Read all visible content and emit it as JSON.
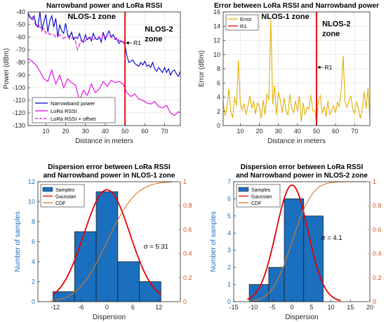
{
  "chart_data": [
    {
      "type": "line",
      "title": "Narrowband power and LoRa RSSI",
      "xlabel": "Distance in meters",
      "ylabel": "Power (dBm)",
      "xlim": [
        1,
        78
      ],
      "ylim": [
        -130,
        -40
      ],
      "xticks": [
        10,
        20,
        30,
        40,
        50,
        60,
        70
      ],
      "yticks": [
        -130,
        -120,
        -110,
        -100,
        -90,
        -80,
        -70,
        -60,
        -50,
        -40
      ],
      "grid": true,
      "legend_position": "bottom-left",
      "zone_divider_x": 50,
      "zone_labels": [
        {
          "lines": [
            "NLOS-1 zone"
          ],
          "x": 21,
          "y": -45.5
        },
        {
          "lines": [
            "NLOS-2",
            "zone"
          ],
          "x": 60,
          "y": -55.5
        }
      ],
      "marker_label": {
        "text": "R1",
        "arrow_from": [
          53.5,
          -64.5
        ],
        "arrow_to": [
          50.5,
          -64.5
        ]
      },
      "series": [
        {
          "name": "Narrowband power",
          "color": "#0000cc",
          "dash": "",
          "x": [
            1,
            2,
            3,
            4,
            5,
            6,
            7,
            8,
            9,
            10,
            11,
            12,
            13,
            14,
            15,
            16,
            17,
            18,
            19,
            20,
            21,
            22,
            23,
            24,
            25,
            26,
            27,
            28,
            29,
            30,
            31,
            32,
            33,
            34,
            35,
            36,
            37,
            38,
            39,
            40,
            41,
            42,
            43,
            44,
            45,
            46,
            47,
            48,
            49,
            50,
            51,
            52,
            53,
            54,
            55,
            56,
            57,
            58,
            59,
            60,
            61,
            62,
            63,
            64,
            65,
            66,
            67,
            68,
            69,
            70,
            71,
            72,
            73,
            74,
            75,
            76,
            77,
            78
          ],
          "y": [
            -41,
            -44,
            -46,
            -43,
            -50,
            -52,
            -40,
            -54,
            -48,
            -42,
            -56,
            -47,
            -43,
            -52,
            -45,
            -60,
            -50,
            -55,
            -57,
            -49,
            -58,
            -60,
            -56,
            -62,
            -60,
            -61,
            -57,
            -63,
            -64,
            -58,
            -62,
            -60,
            -63,
            -57,
            -61,
            -62,
            -60,
            -64,
            -56,
            -62,
            -58,
            -55,
            -60,
            -58,
            -61,
            -62,
            -65,
            -63,
            -64,
            -66,
            -75,
            -80,
            -79,
            -78,
            -81,
            -82,
            -83,
            -80,
            -82,
            -79,
            -83,
            -82,
            -84,
            -80,
            -85,
            -87,
            -84,
            -86,
            -88,
            -84,
            -88,
            -85,
            -90,
            -87,
            -86,
            -89,
            -91,
            -87
          ]
        },
        {
          "name": "LoRa RSSI",
          "color": "#e600e6",
          "dash": "",
          "x": [
            1,
            3,
            5,
            7,
            9,
            11,
            13,
            15,
            17,
            19,
            21,
            23,
            25,
            27,
            29,
            31,
            33,
            35,
            37,
            39,
            41,
            43,
            45,
            47,
            49,
            51,
            53,
            55,
            57,
            59,
            61,
            63,
            65,
            67,
            69,
            71,
            73,
            75,
            77,
            78
          ],
          "y": [
            -77,
            -79,
            -82,
            -87,
            -93,
            -95,
            -86,
            -97,
            -90,
            -100,
            -93,
            -96,
            -98,
            -110,
            -102,
            -106,
            -97,
            -104,
            -101,
            -95,
            -99,
            -94,
            -96,
            -95,
            -97,
            -104,
            -107,
            -105,
            -109,
            -110,
            -112,
            -113,
            -111,
            -115,
            -116,
            -114,
            -120,
            -122,
            -119,
            -120
          ]
        },
        {
          "name": "LoRa RSSI + offset",
          "color": "#e600e6",
          "dash": "6,3",
          "x": [
            1,
            2,
            3,
            4,
            5,
            6,
            7,
            8,
            9,
            10,
            11,
            12,
            13,
            14,
            15,
            16,
            17,
            18,
            19,
            20,
            21,
            22,
            23,
            24,
            25,
            26,
            27,
            28,
            29,
            30,
            31,
            32,
            33,
            34,
            35,
            36,
            37,
            38,
            39,
            40,
            41,
            42,
            43,
            44,
            45,
            46,
            47,
            48,
            49,
            50
          ],
          "y": [
            -42,
            -45,
            -44,
            -47,
            -51,
            -50,
            -52,
            -55,
            -53,
            -57,
            -56,
            -58,
            -57,
            -58,
            -60,
            -59,
            -58,
            -60,
            -61,
            -60,
            -59,
            -62,
            -61,
            -60,
            -63,
            -70,
            -66,
            -62,
            -64,
            -63,
            -60,
            -61,
            -60,
            -62,
            -61,
            -59,
            -60,
            -62,
            -58,
            -60,
            -59,
            -58,
            -60,
            -61,
            -62,
            -60,
            -63,
            -62,
            -64,
            -63
          ]
        }
      ]
    },
    {
      "type": "line",
      "title": "Error between LoRa RSSI and Narrowband power",
      "xlabel": "Distance in meters",
      "ylabel": "Error (dBm)",
      "xlim": [
        1,
        78
      ],
      "ylim": [
        0,
        16
      ],
      "xticks": [
        10,
        20,
        30,
        40,
        50,
        60,
        70
      ],
      "yticks": [
        0,
        2,
        4,
        6,
        8,
        10,
        12,
        14,
        16
      ],
      "grid": true,
      "legend_position": "top-left",
      "zone_divider_x": 50,
      "zone_labels": [
        {
          "lines": [
            "NLOS-1 zone"
          ],
          "x": 21,
          "y": 15.0
        },
        {
          "lines": [
            "NLOS-2",
            "zone"
          ],
          "x": 53,
          "y": 14.0
        }
      ],
      "marker_label": {
        "text": "R1",
        "arrow_from": [
          53.5,
          8.2
        ],
        "arrow_to": [
          50.5,
          8.2
        ]
      },
      "series": [
        {
          "name": "Error",
          "color": "#e6b000",
          "dash": "",
          "x": [
            1,
            2,
            3,
            4,
            5,
            6,
            7,
            8,
            9,
            10,
            11,
            12,
            13,
            14,
            15,
            16,
            17,
            18,
            19,
            20,
            21,
            22,
            23,
            24,
            25,
            26,
            27,
            28,
            29,
            30,
            31,
            32,
            33,
            34,
            35,
            36,
            37,
            38,
            39,
            40,
            41,
            42,
            43,
            44,
            45,
            46,
            47,
            48,
            49,
            50,
            51,
            52,
            53,
            54,
            55,
            56,
            57,
            58,
            59,
            60,
            61,
            62,
            63,
            64,
            65,
            66,
            67,
            68,
            69,
            70,
            71,
            72,
            73,
            74,
            75,
            76,
            77,
            78
          ],
          "y": [
            3.2,
            1.4,
            2.5,
            5.2,
            2.0,
            1.1,
            4.0,
            2.8,
            9.2,
            3.1,
            2.2,
            3.0,
            1.5,
            2.7,
            4.2,
            2.4,
            3.5,
            1.6,
            3.2,
            2.7,
            1.0,
            3.6,
            1.5,
            4.5,
            3.6,
            14.9,
            3.0,
            5.6,
            1.5,
            4.7,
            3.6,
            1.8,
            3.9,
            2.0,
            1.5,
            4.4,
            2.5,
            1.8,
            3.5,
            2.0,
            4.2,
            0.5,
            3.2,
            1.5,
            2.6,
            2.3,
            4.3,
            2.1,
            2.1,
            0.4,
            3.5,
            4.3,
            1.7,
            2.7,
            1.3,
            3.5,
            1.5,
            2.2,
            2.8,
            1.8,
            3.3,
            2.6,
            5.2,
            9.8,
            3.3,
            2.6,
            3.4,
            4.2,
            2.3,
            1.7,
            3.4,
            2.4,
            1.0,
            2.3,
            4.8,
            2.4,
            5.3,
            1.1
          ]
        },
        {
          "name": "R1",
          "color": "#e60000",
          "dash": "",
          "x": [
            50,
            50
          ],
          "y": [
            0,
            16
          ]
        }
      ]
    },
    {
      "type": "bar",
      "title": "Dispersion error between LoRa RSSI|and Narrowband power in NLOS-1 zone",
      "xlabel": "Dispersion",
      "ylabel": "Number of samples",
      "xlim": [
        -16,
        17
      ],
      "ylim": [
        0,
        12
      ],
      "y2lim": [
        0,
        1
      ],
      "xticks": [
        -12,
        -6,
        0,
        6,
        12
      ],
      "yticks": [
        0,
        2,
        4,
        6,
        8,
        10,
        12
      ],
      "y2ticks": [
        0,
        0.2,
        0.4,
        0.6,
        0.8,
        1
      ],
      "bin_edges": [
        -12.5,
        -7.5,
        -2.5,
        2.5,
        7.5,
        12.5
      ],
      "values": [
        1,
        7,
        11,
        4,
        2
      ],
      "bar_color": "#1a70bf",
      "sigma_label": "σ = 5.31",
      "sigma_pos": [
        8.5,
        5.3
      ],
      "gaussian": {
        "mean": 0,
        "sigma": 5.31,
        "peak": 11.2,
        "range": [
          -12.5,
          12.5
        ]
      },
      "cdf": {
        "mean": 0,
        "sigma": 5.31,
        "range": [
          -13,
          15
        ]
      },
      "legend_position": "top-left",
      "legend": [
        {
          "name": "Samples",
          "kind": "patch",
          "color": "#1a70bf"
        },
        {
          "name": "Gaussian",
          "kind": "line",
          "color": "#e60000"
        },
        {
          "name": "CDF",
          "kind": "line",
          "color": "#d9772a"
        }
      ]
    },
    {
      "type": "bar",
      "title": "Dispersion error between LoRa RSSI|and Narrowband power in NLOS-2 zone",
      "xlabel": "Dispersion",
      "ylabel": "Number of samples",
      "xlim": [
        -15,
        20
      ],
      "ylim": [
        0,
        7
      ],
      "y2lim": [
        0,
        1
      ],
      "xticks": [
        -15,
        -10,
        -5,
        0,
        5,
        10,
        15,
        20
      ],
      "yticks": [
        0,
        1,
        2,
        3,
        4,
        5,
        6,
        7
      ],
      "y2ticks": [
        0,
        0.2,
        0.4,
        0.6,
        0.8,
        1
      ],
      "bin_edges": [
        -11,
        -6,
        -2,
        3,
        8
      ],
      "values": [
        1,
        2,
        6,
        5
      ],
      "bar_color": "#1a70bf",
      "sigma_label": "σ = 4.1",
      "sigma_pos": [
        7.5,
        3.6
      ],
      "gaussian": {
        "mean": 0,
        "sigma": 4.1,
        "peak": 6.8,
        "range": [
          -11.5,
          12.5
        ]
      },
      "cdf": {
        "mean": 0,
        "sigma": 4.1,
        "range": [
          -11,
          19
        ]
      },
      "legend_position": "top-left",
      "legend": [
        {
          "name": "Samples",
          "kind": "patch",
          "color": "#1a70bf"
        },
        {
          "name": "Gaussian",
          "kind": "line",
          "color": "#e60000"
        },
        {
          "name": "CDF",
          "kind": "line",
          "color": "#d9772a"
        }
      ]
    }
  ]
}
